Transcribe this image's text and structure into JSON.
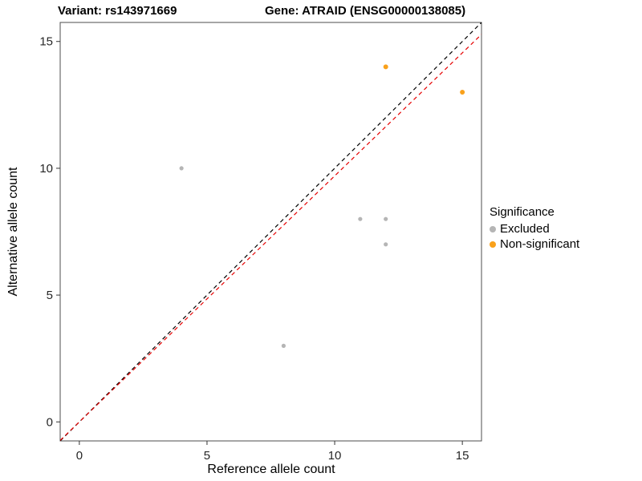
{
  "chart_data": {
    "type": "scatter",
    "title_left": "Variant: rs143971669",
    "title_right": "Gene: ATRAID (ENSG00000138085)",
    "xlabel": "Reference allele count",
    "ylabel": "Alternative allele count",
    "xlim": [
      -0.75,
      15.75
    ],
    "ylim": [
      -0.75,
      15.75
    ],
    "xticks": [
      0,
      5,
      10,
      15
    ],
    "yticks": [
      0,
      5,
      10,
      15
    ],
    "grid": false,
    "legend": {
      "title": "Significance",
      "position": "right",
      "items": [
        {
          "label": "Excluded",
          "color": "#b5b5b5"
        },
        {
          "label": "Non-significant",
          "color": "#f9a11b"
        }
      ]
    },
    "series": [
      {
        "name": "Excluded",
        "color": "#b5b5b5",
        "size": 2.6,
        "points": [
          [
            4,
            10
          ],
          [
            8,
            3
          ],
          [
            11,
            8
          ],
          [
            12,
            8
          ],
          [
            12,
            7
          ]
        ]
      },
      {
        "name": "Non-significant",
        "color": "#f9a11b",
        "size": 3,
        "points": [
          [
            12,
            14
          ],
          [
            15,
            13
          ]
        ]
      }
    ],
    "lines": [
      {
        "name": "identity",
        "slope": 1.0,
        "intercept": 0,
        "color": "#000000",
        "style": "dashed"
      },
      {
        "name": "fit",
        "slope": 0.97,
        "intercept": 0,
        "color": "#e60000",
        "style": "dashed"
      }
    ]
  }
}
